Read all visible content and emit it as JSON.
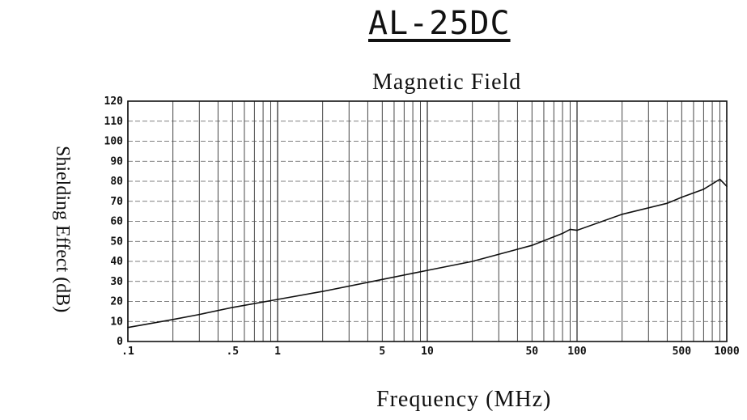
{
  "chart_data": {
    "type": "line",
    "title": "AL-25DC",
    "subtitle": "Magnetic Field",
    "xlabel": "Frequency (MHz)",
    "ylabel": "Shielding Effect (dB)",
    "x_scale": "log",
    "xlim": [
      0.1,
      1000
    ],
    "ylim": [
      0,
      120
    ],
    "grid": true,
    "x_tick_labels": [
      ".1",
      ".5",
      "1",
      "5",
      "10",
      "50",
      "100",
      "500",
      "1000"
    ],
    "x_tick_values": [
      0.1,
      0.5,
      1,
      5,
      10,
      50,
      100,
      500,
      1000
    ],
    "y_ticks": [
      0,
      10,
      20,
      30,
      40,
      50,
      60,
      70,
      80,
      90,
      100,
      110,
      120
    ],
    "series": [
      {
        "x": [
          0.1,
          0.2,
          0.3,
          0.5,
          1,
          2,
          5,
          10,
          20,
          50,
          80,
          90,
          100,
          200,
          400,
          500,
          700,
          900,
          1000
        ],
        "y": [
          7,
          11,
          13.5,
          17,
          21,
          25,
          31,
          35.5,
          40,
          48,
          54,
          56,
          55.5,
          63.5,
          69,
          72,
          76,
          81,
          77.5
        ]
      }
    ]
  }
}
